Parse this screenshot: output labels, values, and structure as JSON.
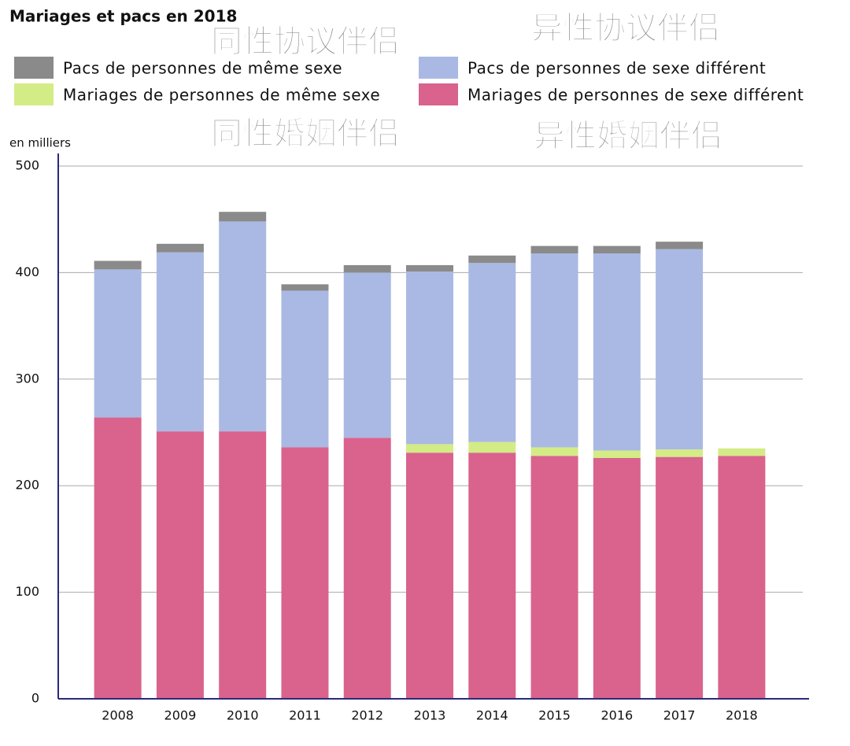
{
  "chart_data": {
    "type": "stacked-bar",
    "title": "Mariages et pacs en 2018",
    "y_label": "en milliers",
    "categories": [
      "2008",
      "2009",
      "2010",
      "2011",
      "2012",
      "2013",
      "2014",
      "2015",
      "2016",
      "2017",
      "2018"
    ],
    "series": [
      {
        "name": "Mariages de personnes de sexe différent",
        "color": "#d9638d",
        "values": [
          264,
          251,
          251,
          236,
          245,
          231,
          231,
          228,
          226,
          227,
          228
        ]
      },
      {
        "name": "Mariages de personnes de même sexe",
        "color": "#d3ec86",
        "values": [
          null,
          null,
          null,
          null,
          null,
          8,
          10,
          8,
          7,
          7,
          7
        ]
      },
      {
        "name": "Pacs de personnes de sexe différent",
        "color": "#aab9e3",
        "values": [
          139,
          168,
          197,
          147,
          155,
          162,
          168,
          182,
          185,
          188,
          null
        ]
      },
      {
        "name": "Pacs de personnes de même sexe",
        "color": "#8a8a8a",
        "values": [
          8,
          8,
          9,
          6,
          7,
          6,
          7,
          7,
          7,
          7,
          null
        ]
      }
    ],
    "ylim": [
      0,
      500
    ],
    "yticks": [
      0,
      100,
      200,
      300,
      400,
      500
    ],
    "grid": true,
    "annotations": [
      "同性协议伴侣",
      "异性协议伴侣",
      "同性婚姻伴侣",
      "异性婚姻伴侣"
    ]
  }
}
